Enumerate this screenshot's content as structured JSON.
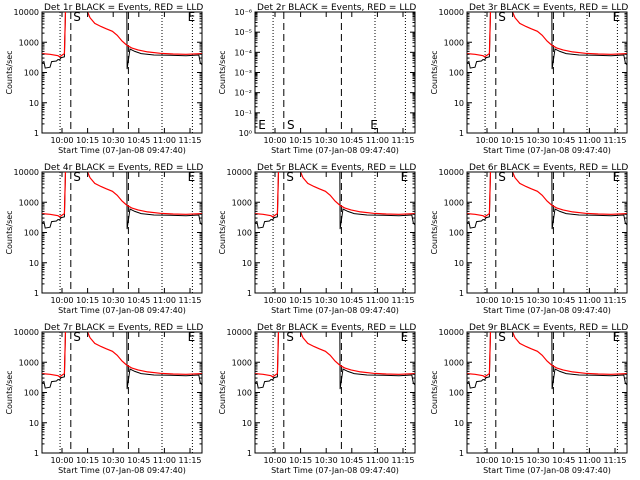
{
  "figure": {
    "xlabel": "Start Time (07-Jan-08 09:47:40)",
    "ylabel": "Counts/sec",
    "colors": {
      "events": "#000000",
      "lld": "#ff0000",
      "axes": "#000000"
    }
  },
  "chart_data": [
    {
      "type": "line",
      "title": "Det 1r BLACK = Events, RED = LLD",
      "xlabel": "Start Time (07-Jan-08 09:47:40)",
      "ylabel": "Counts/sec",
      "scale": "log",
      "ylim": [
        1,
        10000
      ],
      "x_ticks": [
        "10:00",
        "10:15",
        "10:30",
        "10:45",
        "11:00",
        "11:15"
      ],
      "y_ticks": [
        "1",
        "10",
        "100",
        "1000",
        "10000"
      ],
      "markers": [
        "S",
        "E"
      ],
      "flag_marks": [
        "S",
        "E"
      ],
      "nodata": false,
      "series": [
        {
          "color": "#000000"
        },
        {
          "color": "#ff0000"
        }
      ]
    },
    {
      "type": "line",
      "title": "Det 2r BLACK = Events, RED = LLD",
      "xlabel": "Start Time (07-Jan-08 09:47:40)",
      "ylabel": "Counts/sec",
      "scale": "log",
      "ylim": [
        1,
        1e-06
      ],
      "x_ticks": [
        "10:00",
        "10:15",
        "10:30",
        "10:45",
        "11:00",
        "11:15"
      ],
      "y_ticks": [
        "10⁰",
        "10⁻¹",
        "10⁻²",
        "10⁻³",
        "10⁻⁴",
        "10⁻⁵",
        "10⁻⁶"
      ],
      "markers": [
        "S",
        "E"
      ],
      "flag_marks": [
        "E",
        "S",
        "E"
      ],
      "nodata": true,
      "series": []
    },
    {
      "type": "line",
      "title": "Det 3r BLACK = Events, RED = LLD",
      "xlabel": "Start Time (07-Jan-08 09:47:40)",
      "ylabel": "Counts/sec",
      "scale": "log",
      "ylim": [
        1,
        10000
      ],
      "x_ticks": [
        "10:00",
        "10:15",
        "10:30",
        "10:45",
        "11:00",
        "11:15"
      ],
      "y_ticks": [
        "1",
        "10",
        "100",
        "1000",
        "10000"
      ],
      "markers": [
        "S",
        "E"
      ],
      "flag_marks": [
        "S",
        "E"
      ],
      "nodata": false,
      "series": [
        {
          "color": "#000000"
        },
        {
          "color": "#ff0000"
        }
      ]
    },
    {
      "type": "line",
      "title": "Det 4r BLACK = Events, RED = LLD",
      "xlabel": "Start Time (07-Jan-08 09:47:40)",
      "ylabel": "Counts/sec",
      "scale": "log",
      "ylim": [
        1,
        10000
      ],
      "x_ticks": [
        "10:00",
        "10:15",
        "10:30",
        "10:45",
        "11:00",
        "11:15"
      ],
      "y_ticks": [
        "1",
        "10",
        "100",
        "1000",
        "10000"
      ],
      "markers": [
        "S",
        "E"
      ],
      "flag_marks": [
        "S",
        "E"
      ],
      "nodata": false,
      "series": [
        {
          "color": "#000000"
        },
        {
          "color": "#ff0000"
        }
      ]
    },
    {
      "type": "line",
      "title": "Det 5r BLACK = Events, RED = LLD",
      "xlabel": "Start Time (07-Jan-08 09:47:40)",
      "ylabel": "Counts/sec",
      "scale": "log",
      "ylim": [
        1,
        10000
      ],
      "x_ticks": [
        "10:00",
        "10:15",
        "10:30",
        "10:45",
        "11:00",
        "11:15"
      ],
      "y_ticks": [
        "1",
        "10",
        "100",
        "1000",
        "10000"
      ],
      "markers": [
        "S",
        "E"
      ],
      "flag_marks": [
        "S",
        "E"
      ],
      "nodata": false,
      "series": [
        {
          "color": "#000000"
        },
        {
          "color": "#ff0000"
        }
      ]
    },
    {
      "type": "line",
      "title": "Det 6r BLACK = Events, RED = LLD",
      "xlabel": "Start Time (07-Jan-08 09:47:40)",
      "ylabel": "Counts/sec",
      "scale": "log",
      "ylim": [
        1,
        10000
      ],
      "x_ticks": [
        "10:00",
        "10:15",
        "10:30",
        "10:45",
        "11:00",
        "11:15"
      ],
      "y_ticks": [
        "1",
        "10",
        "100",
        "1000",
        "10000"
      ],
      "markers": [
        "S",
        "E"
      ],
      "flag_marks": [
        "S",
        "E"
      ],
      "nodata": false,
      "series": [
        {
          "color": "#000000"
        },
        {
          "color": "#ff0000"
        }
      ]
    },
    {
      "type": "line",
      "title": "Det 7r BLACK = Events, RED = LLD",
      "xlabel": "Start Time (07-Jan-08 09:47:40)",
      "ylabel": "Counts/sec",
      "scale": "log",
      "ylim": [
        1,
        10000
      ],
      "x_ticks": [
        "10:00",
        "10:15",
        "10:30",
        "10:45",
        "11:00",
        "11:15"
      ],
      "y_ticks": [
        "1",
        "10",
        "100",
        "1000",
        "10000"
      ],
      "markers": [
        "S",
        "E"
      ],
      "flag_marks": [
        "S",
        "E"
      ],
      "nodata": false,
      "series": [
        {
          "color": "#000000"
        },
        {
          "color": "#ff0000"
        }
      ]
    },
    {
      "type": "line",
      "title": "Det 8r BLACK = Events, RED = LLD",
      "xlabel": "Start Time (07-Jan-08 09:47:40)",
      "ylabel": "Counts/sec",
      "scale": "log",
      "ylim": [
        1,
        10000
      ],
      "x_ticks": [
        "10:00",
        "10:15",
        "10:30",
        "10:45",
        "11:00",
        "11:15"
      ],
      "y_ticks": [
        "1",
        "10",
        "100",
        "1000",
        "10000"
      ],
      "markers": [
        "S",
        "E"
      ],
      "flag_marks": [
        "S",
        "E"
      ],
      "nodata": false,
      "series": [
        {
          "color": "#000000"
        },
        {
          "color": "#ff0000"
        }
      ]
    },
    {
      "type": "line",
      "title": "Det 9r BLACK = Events, RED = LLD",
      "xlabel": "Start Time (07-Jan-08 09:47:40)",
      "ylabel": "Counts/sec",
      "scale": "log",
      "ylim": [
        1,
        10000
      ],
      "x_ticks": [
        "10:00",
        "10:15",
        "10:30",
        "10:45",
        "11:00",
        "11:15"
      ],
      "y_ticks": [
        "1",
        "10",
        "100",
        "1000",
        "10000"
      ],
      "markers": [
        "S",
        "E"
      ],
      "flag_marks": [
        "S",
        "E"
      ],
      "nodata": false,
      "series": [
        {
          "color": "#000000"
        },
        {
          "color": "#ff0000"
        }
      ]
    }
  ]
}
